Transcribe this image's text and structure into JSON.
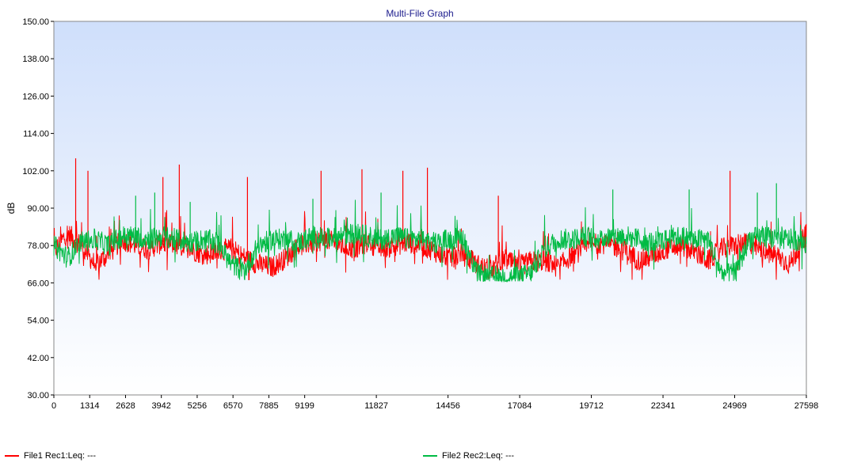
{
  "chart_data": {
    "type": "line",
    "title": "Multi-File Graph",
    "ylabel": "dB",
    "xlabel": "",
    "xlim": [
      0,
      27598
    ],
    "ylim": [
      30,
      150
    ],
    "y_ticks": [
      "30.00",
      "42.00",
      "54.00",
      "66.00",
      "78.00",
      "90.00",
      "102.00",
      "114.00",
      "126.00",
      "138.00",
      "150.00"
    ],
    "x_ticks": [
      "0",
      "1314",
      "2628",
      "3942",
      "5256",
      "6570",
      "7885",
      "9199",
      "11827",
      "14456",
      "17084",
      "19712",
      "22341",
      "24969",
      "27598"
    ],
    "x_tick_values": [
      0,
      1314,
      2628,
      3942,
      5256,
      6570,
      7885,
      9199,
      11827,
      14456,
      17084,
      19712,
      22341,
      24969,
      27598
    ],
    "grid": false,
    "legend_position": "bottom",
    "series": [
      {
        "name": "File1 Rec1:Leq: ---",
        "color": "#ff0000",
        "x": [
          0,
          500,
          1000,
          1500,
          2000,
          2500,
          3000,
          3500,
          4000,
          4500,
          5000,
          5500,
          6000,
          6500,
          7000,
          7500,
          8000,
          8500,
          9000,
          9500,
          10000,
          10500,
          11000,
          11500,
          12000,
          12500,
          13000,
          13500,
          14000,
          14500,
          15000,
          15500,
          16000,
          16500,
          17000,
          17500,
          18000,
          18500,
          19000,
          19500,
          20000,
          20500,
          21000,
          21500,
          22000,
          22500,
          23000,
          23500,
          24000,
          24500,
          25000,
          25500,
          26000,
          26500,
          27000,
          27598
        ],
        "values": [
          76,
          82,
          78,
          72,
          75,
          80,
          78,
          77,
          79,
          78,
          77,
          75,
          76,
          77,
          74,
          72,
          71,
          74,
          78,
          79,
          80,
          78,
          77,
          79,
          77,
          78,
          79,
          78,
          76,
          74,
          75,
          72,
          70,
          74,
          71,
          73,
          73,
          71,
          75,
          77,
          79,
          78,
          76,
          73,
          75,
          77,
          78,
          76,
          73,
          77,
          78,
          79,
          76,
          75,
          72,
          82
        ],
        "peaks": [
          [
            800,
            106
          ],
          [
            1250,
            102
          ],
          [
            4000,
            100
          ],
          [
            4600,
            104
          ],
          [
            7100,
            100
          ],
          [
            9800,
            102
          ],
          [
            11300,
            102.5
          ],
          [
            12800,
            102
          ],
          [
            13700,
            103
          ],
          [
            16300,
            94
          ],
          [
            24800,
            102
          ]
        ]
      },
      {
        "name": "File2 Rec2:Leq: ---",
        "color": "#00bb44",
        "x": [
          0,
          500,
          1000,
          1500,
          2000,
          2500,
          3000,
          3500,
          4000,
          4500,
          5000,
          5500,
          6000,
          6500,
          7000,
          7500,
          8000,
          8500,
          9000,
          9500,
          10000,
          10500,
          11000,
          11500,
          12000,
          12500,
          13000,
          13500,
          14000,
          14500,
          15000,
          15500,
          16000,
          16500,
          17000,
          17500,
          18000,
          18500,
          19000,
          19500,
          20000,
          20500,
          21000,
          21500,
          22000,
          22500,
          23000,
          23500,
          24000,
          24500,
          25000,
          25500,
          26000,
          26500,
          27000,
          27598
        ],
        "values": [
          78,
          74,
          79,
          80,
          78,
          81,
          81,
          80,
          81,
          80,
          79,
          80,
          79,
          72,
          70,
          78,
          80,
          80,
          79,
          81,
          80,
          81,
          82,
          81,
          80,
          81,
          80,
          80,
          79,
          80,
          81,
          69,
          68,
          68,
          68,
          69,
          77,
          80,
          80,
          81,
          80,
          81,
          81,
          80,
          79,
          80,
          81,
          80,
          80,
          69,
          69,
          80,
          81,
          80,
          80,
          79
        ],
        "peaks": [
          [
            3000,
            94
          ],
          [
            3700,
            95
          ],
          [
            5000,
            92
          ],
          [
            9500,
            93
          ],
          [
            12000,
            95
          ],
          [
            20500,
            96
          ],
          [
            23300,
            96
          ],
          [
            25800,
            95
          ],
          [
            26500,
            98
          ]
        ]
      }
    ]
  }
}
